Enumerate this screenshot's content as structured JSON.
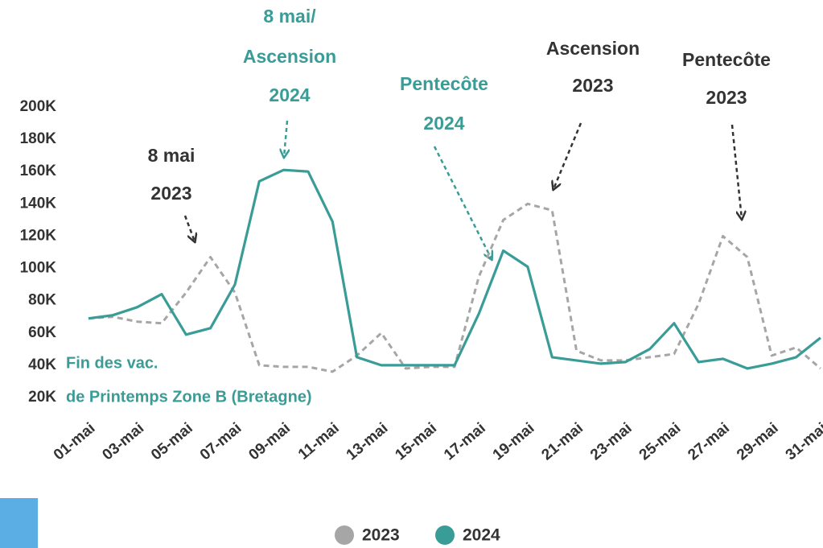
{
  "chart_data": {
    "type": "line",
    "categories": [
      "01-mai",
      null,
      "03-mai",
      null,
      "05-mai",
      null,
      "07-mai",
      null,
      "09-mai",
      null,
      "11-mai",
      null,
      "13-mai",
      null,
      "15-mai",
      null,
      "17-mai",
      null,
      "19-mai",
      null,
      "21-mai",
      null,
      "23-mai",
      null,
      "25-mai",
      null,
      "27-mai",
      null,
      "29-mai",
      null,
      "31-mai"
    ],
    "series": [
      {
        "name": "2023",
        "color": "#a6a6a6",
        "dashed": true,
        "values": [
          69000,
          70000,
          67000,
          66000,
          85000,
          107000,
          85000,
          40000,
          39000,
          39000,
          36000,
          46000,
          60000,
          38000,
          39000,
          39000,
          95000,
          130000,
          140000,
          136000,
          49000,
          43000,
          43000,
          45000,
          47000,
          78000,
          120000,
          107000,
          46000,
          51000,
          38000
        ]
      },
      {
        "name": "2024",
        "color": "#3a9c96",
        "dashed": false,
        "values": [
          69000,
          71000,
          76000,
          84000,
          59000,
          63000,
          90000,
          154000,
          161000,
          160000,
          129000,
          45000,
          40000,
          40000,
          40000,
          40000,
          72000,
          111000,
          101000,
          45000,
          43000,
          41000,
          42000,
          50000,
          66000,
          42000,
          44000,
          38000,
          41000,
          45000,
          57000
        ]
      }
    ],
    "ylim": [
      20000,
      200000
    ],
    "yticks": [
      {
        "value": 20000,
        "label": "20K"
      },
      {
        "value": 40000,
        "label": "40K"
      },
      {
        "value": 60000,
        "label": "60K"
      },
      {
        "value": 80000,
        "label": "80K"
      },
      {
        "value": 100000,
        "label": "100K"
      },
      {
        "value": 120000,
        "label": "120K"
      },
      {
        "value": 140000,
        "label": "140K"
      },
      {
        "value": 160000,
        "label": "160K"
      },
      {
        "value": 180000,
        "label": "180K"
      },
      {
        "value": 200000,
        "label": "200K"
      }
    ],
    "grid": false,
    "legend": "bottom",
    "annotations": [
      {
        "lines": [
          "8 mai",
          "2023"
        ],
        "color": "#333333"
      },
      {
        "lines": [
          "8 mai/",
          "Ascension",
          "2024"
        ],
        "color": "#3a9c96"
      },
      {
        "lines": [
          "Pentecôte",
          "2024"
        ],
        "color": "#3a9c96"
      },
      {
        "lines": [
          "Ascension",
          "2023"
        ],
        "color": "#333333"
      },
      {
        "lines": [
          "Pentecôte",
          "2023"
        ],
        "color": "#333333"
      },
      {
        "lines": [
          "Fin des vac.",
          "de Printemps Zone B (Bretagne)"
        ],
        "color": "#3a9c96"
      }
    ]
  }
}
